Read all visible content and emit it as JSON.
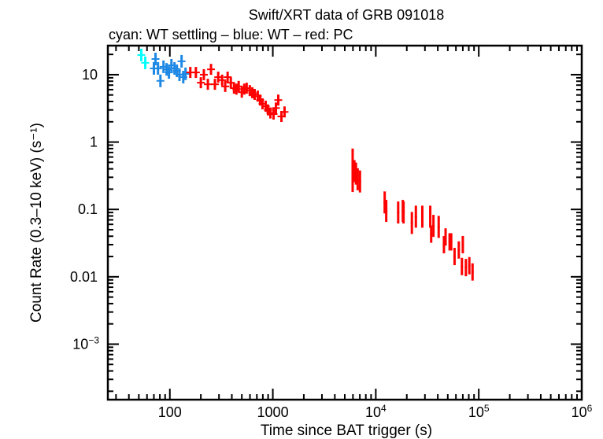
{
  "chart_data": {
    "type": "scatter",
    "title": "Swift/XRT data of GRB 091018",
    "subtitle": "cyan: WT settling – blue: WT – red: PC",
    "xlabel": "Time since BAT trigger (s)",
    "ylabel": "Count Rate (0.3–10 keV) (s⁻¹)",
    "xscale": "log",
    "yscale": "log",
    "xlim": [
      25,
      1000000
    ],
    "ylim": [
      0.00015,
      27
    ],
    "grid": false,
    "x_ticks": [
      {
        "value": 100,
        "label": "100"
      },
      {
        "value": 1000,
        "label": "1000"
      },
      {
        "value": 10000,
        "label": "10",
        "exp": "4"
      },
      {
        "value": 100000,
        "label": "10",
        "exp": "5"
      },
      {
        "value": 1000000,
        "label": "10",
        "exp": "6"
      }
    ],
    "y_ticks": [
      {
        "value": 10,
        "label": "10"
      },
      {
        "value": 1,
        "label": "1"
      },
      {
        "value": 0.1,
        "label": "0.1"
      },
      {
        "value": 0.01,
        "label": "0.01"
      },
      {
        "value": 0.001,
        "label": "10",
        "exp": "−3"
      }
    ],
    "series": [
      {
        "mode": "WT settling",
        "color": "#00ffff",
        "points": [
          [
            52.8,
            19.6
          ],
          [
            57.7,
            15
          ]
        ]
      },
      {
        "mode": "WT",
        "color": "#1e88e5",
        "points": [
          [
            70,
            12.4
          ],
          [
            72.6,
            17.1
          ],
          [
            76.7,
            12.4
          ],
          [
            81,
            8.1
          ],
          [
            86.8,
            13.1
          ],
          [
            93,
            12
          ],
          [
            98,
            10.8
          ],
          [
            103.6,
            13.8
          ],
          [
            111,
            12.4
          ],
          [
            117,
            11.4
          ],
          [
            124,
            10
          ],
          [
            130,
            15.8
          ],
          [
            135,
            9.2
          ],
          [
            142,
            10.3
          ]
        ]
      },
      {
        "mode": "PC",
        "color": "#ff0000",
        "points": [
          [
            158,
            10.8
          ],
          [
            179,
            10.8
          ],
          [
            200,
            7.6
          ],
          [
            214,
            10
          ],
          [
            234,
            7.2
          ],
          [
            251,
            12
          ],
          [
            274,
            7.2
          ],
          [
            295,
            9.2
          ],
          [
            322,
            8.3
          ],
          [
            345,
            6.7
          ],
          [
            364,
            9.2
          ],
          [
            391,
            7.6
          ],
          [
            420,
            6.3
          ],
          [
            443,
            6.1
          ],
          [
            466,
            6.7
          ],
          [
            500,
            5.5
          ],
          [
            528,
            6.1
          ],
          [
            557,
            6.3
          ],
          [
            598,
            5.8
          ],
          [
            632,
            5.4
          ],
          [
            666,
            5.1
          ],
          [
            714,
            4.8
          ],
          [
            753,
            4.2
          ],
          [
            794,
            3.7
          ],
          [
            852,
            3.4
          ],
          [
            898,
            3
          ],
          [
            947,
            2.7
          ],
          [
            1016,
            2.6
          ],
          [
            1072,
            3.2
          ],
          [
            1130,
            4.2
          ],
          [
            1213,
            2.4
          ],
          [
            1300,
            2.8
          ],
          [
            5960,
            0.264
          ],
          [
            5960,
            0.55
          ],
          [
            6200,
            0.37
          ],
          [
            6420,
            0.34
          ],
          [
            6670,
            0.28
          ],
          [
            7020,
            0.26
          ],
          [
            12200,
            0.127
          ],
          [
            12630,
            0.095
          ],
          [
            16500,
            0.09
          ],
          [
            18300,
            0.095
          ],
          [
            18600,
            0.09
          ],
          [
            22400,
            0.063
          ],
          [
            24500,
            0.078
          ],
          [
            28300,
            0.078
          ],
          [
            33800,
            0.078
          ],
          [
            34500,
            0.043
          ],
          [
            36300,
            0.057
          ],
          [
            40800,
            0.055
          ],
          [
            45900,
            0.03
          ],
          [
            47600,
            0.039
          ],
          [
            52100,
            0.033
          ],
          [
            54000,
            0.033
          ],
          [
            58200,
            0.02
          ],
          [
            64000,
            0.025
          ],
          [
            70000,
            0.03
          ],
          [
            68600,
            0.0142
          ],
          [
            75000,
            0.0137
          ],
          [
            81000,
            0.0146
          ],
          [
            87000,
            0.0118
          ]
        ]
      }
    ]
  }
}
